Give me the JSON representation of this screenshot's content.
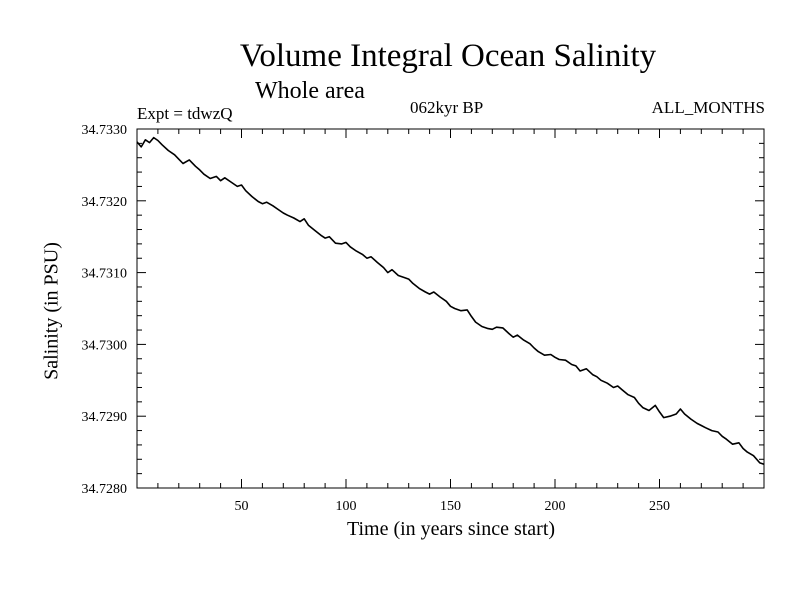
{
  "chart_data": {
    "type": "line",
    "title": "Volume Integral Ocean Salinity",
    "subtitle": "Whole area",
    "annotations": {
      "experiment": "Expt = tdwzQ",
      "period": "062kyr BP",
      "months": "ALL_MONTHS"
    },
    "xlabel": "Time (in years since start)",
    "ylabel": "Salinity (in PSU)",
    "xlim": [
      0,
      300
    ],
    "ylim": [
      34.728,
      34.733
    ],
    "xticks": [
      50,
      100,
      150,
      200,
      250
    ],
    "xtick_labels": [
      "50",
      "100",
      "150",
      "200",
      "250"
    ],
    "yticks": [
      34.728,
      34.729,
      34.73,
      34.731,
      34.732,
      34.733
    ],
    "ytick_labels": [
      "34.7280",
      "34.7290",
      "34.7300",
      "34.7310",
      "34.7320",
      "34.7330"
    ],
    "grid": false,
    "legend": "none",
    "series": [
      {
        "color": "#000000",
        "x": [
          0,
          2,
          4,
          6,
          8,
          10,
          12,
          15,
          18,
          20,
          22,
          25,
          28,
          30,
          32,
          35,
          38,
          40,
          42,
          45,
          48,
          50,
          52,
          55,
          58,
          60,
          62,
          65,
          68,
          70,
          72,
          75,
          78,
          80,
          82,
          85,
          88,
          90,
          92,
          95,
          98,
          100,
          102,
          105,
          108,
          110,
          112,
          115,
          118,
          120,
          122,
          125,
          128,
          130,
          132,
          135,
          138,
          140,
          142,
          145,
          148,
          150,
          152,
          155,
          158,
          160,
          162,
          165,
          168,
          170,
          172,
          175,
          178,
          180,
          182,
          185,
          188,
          190,
          192,
          195,
          198,
          200,
          202,
          205,
          208,
          210,
          212,
          215,
          218,
          220,
          222,
          225,
          228,
          230,
          232,
          235,
          238,
          240,
          242,
          245,
          248,
          250,
          252,
          255,
          258,
          260,
          262,
          265,
          268,
          270,
          272,
          275,
          278,
          280,
          282,
          285,
          288,
          290,
          292,
          295,
          298,
          300
        ],
        "values": [
          34.73282,
          34.73275,
          34.73285,
          34.73281,
          34.73288,
          34.73284,
          34.73278,
          34.7327,
          34.73264,
          34.73258,
          34.73252,
          34.73257,
          34.73248,
          34.73243,
          34.73237,
          34.73231,
          34.73234,
          34.73228,
          34.73232,
          34.73226,
          34.7322,
          34.73222,
          34.73214,
          34.73206,
          34.73199,
          34.73196,
          34.73198,
          34.73193,
          34.73187,
          34.73183,
          34.7318,
          34.73176,
          34.73171,
          34.73175,
          34.73166,
          34.73159,
          34.73152,
          34.73148,
          34.7315,
          34.73141,
          34.7314,
          34.73142,
          34.73136,
          34.7313,
          34.73125,
          34.7312,
          34.73122,
          34.73114,
          34.73107,
          34.731,
          34.73104,
          34.73096,
          34.73093,
          34.73091,
          34.73085,
          34.73078,
          34.73073,
          34.7307,
          34.73073,
          34.73066,
          34.7306,
          34.73053,
          34.7305,
          34.73047,
          34.73048,
          34.73039,
          34.73031,
          34.73025,
          34.73022,
          34.73021,
          34.73024,
          34.73023,
          34.73015,
          34.7301,
          34.73013,
          34.73006,
          34.73001,
          34.72995,
          34.7299,
          34.72985,
          34.72986,
          34.72982,
          34.72979,
          34.72978,
          34.72972,
          34.7297,
          34.72963,
          34.72966,
          34.72958,
          34.72955,
          34.7295,
          34.72946,
          34.7294,
          34.72942,
          34.72937,
          34.7293,
          34.72926,
          34.72918,
          34.72912,
          34.72908,
          34.72915,
          34.72906,
          34.72898,
          34.729,
          34.72903,
          34.7291,
          34.72903,
          34.72896,
          34.7289,
          34.72887,
          34.72884,
          34.7288,
          34.72878,
          34.72872,
          34.72868,
          34.72861,
          34.72863,
          34.72855,
          34.7285,
          34.72845,
          34.72835,
          34.72833
        ]
      }
    ]
  }
}
